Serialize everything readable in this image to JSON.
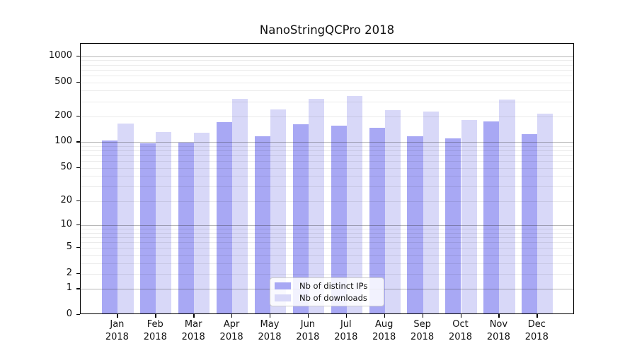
{
  "chart_data": {
    "type": "bar",
    "title": "NanoStringQCPro 2018",
    "xlabel": "",
    "ylabel": "",
    "year_label": "2018",
    "categories": [
      "Jan",
      "Feb",
      "Mar",
      "Apr",
      "May",
      "Jun",
      "Jul",
      "Aug",
      "Sep",
      "Oct",
      "Nov",
      "Dec"
    ],
    "series": [
      {
        "name": "Nb of distinct IPs",
        "color": "#a8a8f4",
        "values": [
          100,
          93,
          95,
          165,
          112,
          156,
          151,
          143,
          113,
          107,
          170,
          120
        ]
      },
      {
        "name": "Nb of downloads",
        "color": "#d8d8f8",
        "values": [
          160,
          127,
          124,
          310,
          233,
          309,
          333,
          230,
          219,
          175,
          305,
          209
        ]
      }
    ],
    "y_scale": "log1p",
    "y_ticks": [
      0,
      1,
      2,
      5,
      10,
      20,
      50,
      100,
      200,
      500,
      1000
    ],
    "y_major_gridlines": [
      1,
      10,
      100,
      1000
    ],
    "y_minor_gridline_bases": [
      2,
      3,
      4,
      5,
      6,
      7,
      8,
      9
    ],
    "y_minor_gridline_decades": [
      1,
      10,
      100
    ],
    "ylim": [
      0,
      1400
    ],
    "grid": true,
    "legend_position": "lower center",
    "colors": {
      "bar_dark": "#a8a8f4",
      "bar_light": "#d8d8f8",
      "spine": "#000000",
      "text": "#111111",
      "legend_border": "#cccccc"
    }
  }
}
